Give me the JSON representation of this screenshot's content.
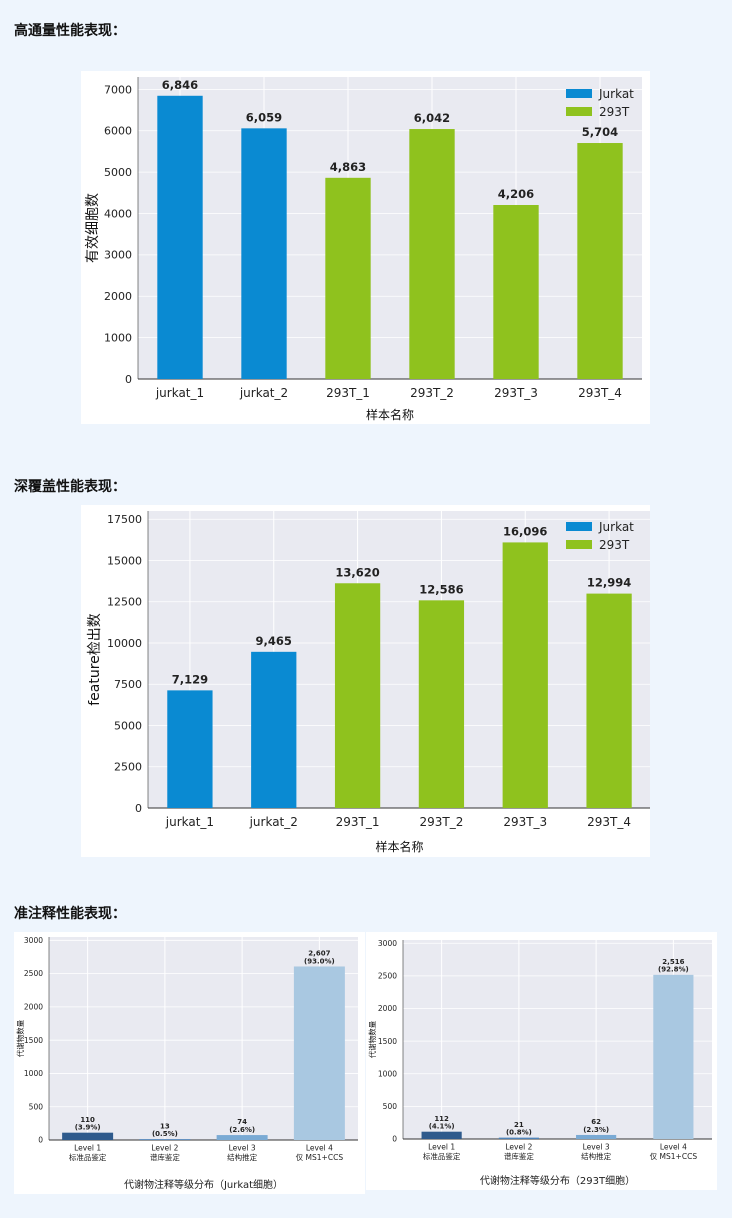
{
  "sections": [
    {
      "heading": "高通量性能表现："
    },
    {
      "heading": "深覆盖性能表现："
    },
    {
      "heading": "准注释性能表现："
    }
  ],
  "colors": {
    "jurkat": "#0a8ad2",
    "t293": "#8fc21e",
    "plot_bg": "#e9eaf1",
    "grid": "#ffffff"
  },
  "chart_data": [
    {
      "type": "bar",
      "xlabel": "样本名称",
      "ylabel": "有效细胞数",
      "ylim": [
        0,
        7300
      ],
      "yticks": [
        0,
        1000,
        2000,
        3000,
        4000,
        5000,
        6000,
        7000
      ],
      "categories": [
        "jurkat_1",
        "jurkat_2",
        "293T_1",
        "293T_2",
        "293T_3",
        "293T_4"
      ],
      "values": [
        6846,
        6059,
        4863,
        6042,
        4206,
        5704
      ],
      "value_labels": [
        "6,846",
        "6,059",
        "4,863",
        "6,042",
        "4,206",
        "5,704"
      ],
      "groups": [
        "Jurkat",
        "Jurkat",
        "293T",
        "293T",
        "293T",
        "293T"
      ],
      "legend": [
        "Jurkat",
        "293T"
      ],
      "legend_position": "top-right",
      "grid": true
    },
    {
      "type": "bar",
      "xlabel": "样本名称",
      "ylabel": "feature检出数",
      "ylim": [
        0,
        18000
      ],
      "yticks": [
        0,
        2500,
        5000,
        7500,
        10000,
        12500,
        15000,
        17500
      ],
      "categories": [
        "jurkat_1",
        "jurkat_2",
        "293T_1",
        "293T_2",
        "293T_3",
        "293T_4"
      ],
      "values": [
        7129,
        9465,
        13620,
        12586,
        16096,
        12994
      ],
      "value_labels": [
        "7,129",
        "9,465",
        "13,620",
        "12,586",
        "16,096",
        "12,994"
      ],
      "groups": [
        "Jurkat",
        "Jurkat",
        "293T",
        "293T",
        "293T",
        "293T"
      ],
      "legend": [
        "Jurkat",
        "293T"
      ],
      "legend_position": "top-right",
      "grid": true
    },
    {
      "type": "bar",
      "title": "代谢物注释等级分布（Jurkat细胞）",
      "ylabel": "代谢物数量",
      "ylim": [
        0,
        3050
      ],
      "yticks": [
        0,
        500,
        1000,
        1500,
        2000,
        2500,
        3000
      ],
      "categories": [
        [
          "Level 1",
          "标准品鉴定"
        ],
        [
          "Level 2",
          "谱库鉴定"
        ],
        [
          "Level 3",
          "结构推定"
        ],
        [
          "Level 4",
          "仅 MS1+CCS"
        ]
      ],
      "values": [
        110,
        13,
        74,
        2607
      ],
      "value_labels": [
        [
          "110",
          "(3.9%)"
        ],
        [
          "13",
          "(0.5%)"
        ],
        [
          "74",
          "(2.6%)"
        ],
        [
          "2,607",
          "(93.0%)"
        ]
      ],
      "bar_colors": [
        "#2e5a8c",
        "#4f83b8",
        "#7aaad4",
        "#a9c8e1"
      ],
      "grid": true
    },
    {
      "type": "bar",
      "title": "代谢物注释等级分布（293T细胞）",
      "ylabel": "代谢物数量",
      "ylim": [
        0,
        3050
      ],
      "yticks": [
        0,
        500,
        1000,
        1500,
        2000,
        2500,
        3000
      ],
      "categories": [
        [
          "Level 1",
          "标准品鉴定"
        ],
        [
          "Level 2",
          "谱库鉴定"
        ],
        [
          "Level 3",
          "结构推定"
        ],
        [
          "Level 4",
          "仅 MS1+CCS"
        ]
      ],
      "values": [
        112,
        21,
        62,
        2516
      ],
      "value_labels": [
        [
          "112",
          "(4.1%)"
        ],
        [
          "21",
          "(0.8%)"
        ],
        [
          "62",
          "(2.3%)"
        ],
        [
          "2,516",
          "(92.8%)"
        ]
      ],
      "bar_colors": [
        "#2e5a8c",
        "#4f83b8",
        "#7aaad4",
        "#a9c8e1"
      ],
      "grid": true
    }
  ]
}
